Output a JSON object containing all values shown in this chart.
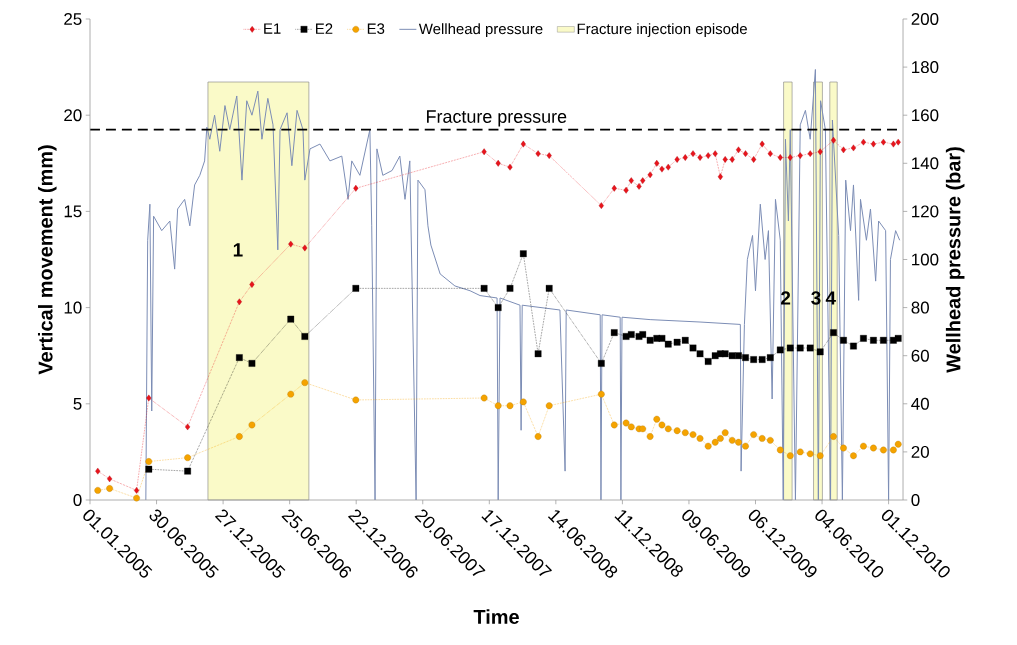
{
  "chart_data": {
    "type": "line",
    "xlabel": "Time",
    "ylabel": "Vertical movement (mm)",
    "y2label": "Wellhead pressure (bar)",
    "xlim": [
      "2005-01-01",
      "2011-01-09"
    ],
    "ylim": [
      0,
      25
    ],
    "yticks": [
      0,
      5,
      10,
      15,
      20,
      25
    ],
    "y2lim": [
      0,
      200
    ],
    "y2ticks": [
      0,
      20,
      40,
      60,
      80,
      100,
      120,
      140,
      160,
      180,
      200
    ],
    "xticks": [
      {
        "value": "2005-01-01",
        "label": "01.01.2005"
      },
      {
        "value": "2005-06-30",
        "label": "30.06.2005"
      },
      {
        "value": "2005-12-27",
        "label": "27.12.2005"
      },
      {
        "value": "2006-06-25",
        "label": "25.06.2006"
      },
      {
        "value": "2006-12-22",
        "label": "22.12.2006"
      },
      {
        "value": "2007-06-20",
        "label": "20.06.2007"
      },
      {
        "value": "2007-12-17",
        "label": "17.12.2007"
      },
      {
        "value": "2008-06-14",
        "label": "14.06.2008"
      },
      {
        "value": "2008-12-11",
        "label": "11.12.2008"
      },
      {
        "value": "2009-06-09",
        "label": "09.06.2009"
      },
      {
        "value": "2009-12-06",
        "label": "06.12.2009"
      },
      {
        "value": "2010-06-04",
        "label": "04.06.2010"
      },
      {
        "value": "2010-12-01",
        "label": "01.12.2010"
      }
    ],
    "legend": "top",
    "series": [
      {
        "name": "E1",
        "color": "#e8141c",
        "marker": "diamond",
        "line_style": "dotted",
        "x": [
          "2005-01-22",
          "2005-02-23",
          "2005-05-07",
          "2005-06-09",
          "2005-09-22",
          "2006-02-09",
          "2006-03-15",
          "2006-06-28",
          "2006-08-05",
          "2006-12-21",
          "2007-12-03",
          "2008-01-10",
          "2008-02-11",
          "2008-03-18",
          "2008-04-27",
          "2008-05-27",
          "2008-10-15",
          "2008-11-19",
          "2008-12-21",
          "2009-01-04",
          "2009-01-25",
          "2009-02-04",
          "2009-02-24",
          "2009-03-14",
          "2009-03-28",
          "2009-04-14",
          "2009-05-08",
          "2009-05-30",
          "2009-06-20",
          "2009-07-09",
          "2009-07-31",
          "2009-08-19",
          "2009-09-02",
          "2009-09-15",
          "2009-10-04",
          "2009-10-21",
          "2009-11-09",
          "2009-12-01",
          "2009-12-24",
          "2010-01-15",
          "2010-02-11",
          "2010-03-10",
          "2010-04-06",
          "2010-05-03",
          "2010-05-30",
          "2010-07-05",
          "2010-08-01",
          "2010-08-28",
          "2010-09-24",
          "2010-10-21",
          "2010-11-17",
          "2010-12-14",
          "2010-12-27"
        ],
        "values": [
          1.5,
          1.1,
          0.5,
          5.3,
          3.8,
          10.3,
          11.2,
          13.3,
          13.1,
          16.2,
          18.1,
          17.5,
          17.3,
          18.5,
          18.0,
          17.9,
          15.3,
          16.2,
          16.1,
          16.6,
          16.3,
          16.6,
          16.9,
          17.5,
          17.2,
          17.3,
          17.7,
          17.8,
          18.0,
          17.8,
          17.9,
          18.0,
          16.8,
          17.7,
          17.7,
          18.2,
          18.0,
          17.7,
          18.5,
          18.0,
          17.8,
          17.8,
          17.9,
          18.0,
          18.1,
          18.7,
          18.2,
          18.3,
          18.6,
          18.5,
          18.6,
          18.5,
          18.6
        ]
      },
      {
        "name": "E2",
        "color": "#000000",
        "marker": "square",
        "line_style": "dotted",
        "x": [
          "2005-06-09",
          "2005-09-22",
          "2006-02-09",
          "2006-03-15",
          "2006-06-28",
          "2006-08-05",
          "2006-12-21",
          "2007-12-03",
          "2008-01-10",
          "2008-02-11",
          "2008-03-18",
          "2008-04-27",
          "2008-05-27",
          "2008-10-15",
          "2008-11-19",
          "2008-12-21",
          "2009-01-04",
          "2009-01-25",
          "2009-02-04",
          "2009-02-24",
          "2009-03-14",
          "2009-03-28",
          "2009-04-14",
          "2009-05-08",
          "2009-05-30",
          "2009-06-20",
          "2009-07-09",
          "2009-07-31",
          "2009-08-19",
          "2009-09-02",
          "2009-09-15",
          "2009-10-04",
          "2009-10-21",
          "2009-11-09",
          "2009-12-01",
          "2009-12-24",
          "2010-01-15",
          "2010-02-11",
          "2010-03-10",
          "2010-04-06",
          "2010-05-03",
          "2010-05-30",
          "2010-07-05",
          "2010-08-01",
          "2010-08-28",
          "2010-09-24",
          "2010-10-21",
          "2010-11-17",
          "2010-12-14",
          "2010-12-27"
        ],
        "values": [
          1.6,
          1.5,
          7.4,
          7.1,
          9.4,
          8.5,
          11.0,
          11.0,
          10.0,
          11.0,
          12.8,
          7.6,
          11.0,
          7.1,
          8.7,
          8.5,
          8.6,
          8.5,
          8.6,
          8.3,
          8.4,
          8.4,
          8.1,
          8.2,
          8.3,
          7.9,
          7.6,
          7.2,
          7.5,
          7.6,
          7.6,
          7.5,
          7.5,
          7.4,
          7.3,
          7.3,
          7.4,
          7.8,
          7.9,
          7.9,
          7.9,
          7.7,
          8.7,
          8.3,
          8.0,
          8.4,
          8.3,
          8.3,
          8.3,
          8.4
        ]
      },
      {
        "name": "E3",
        "color": "#f5a300",
        "marker": "circle",
        "line_style": "dotted",
        "x": [
          "2005-01-22",
          "2005-02-23",
          "2005-05-07",
          "2005-06-09",
          "2005-09-22",
          "2006-02-09",
          "2006-03-15",
          "2006-06-28",
          "2006-08-05",
          "2006-12-21",
          "2007-12-03",
          "2008-01-10",
          "2008-02-11",
          "2008-03-18",
          "2008-04-27",
          "2008-05-27",
          "2008-10-15",
          "2008-11-19",
          "2008-12-21",
          "2009-01-04",
          "2009-01-25",
          "2009-02-04",
          "2009-02-24",
          "2009-03-14",
          "2009-03-28",
          "2009-04-14",
          "2009-05-08",
          "2009-05-30",
          "2009-06-20",
          "2009-07-09",
          "2009-07-31",
          "2009-08-19",
          "2009-09-02",
          "2009-09-15",
          "2009-10-04",
          "2009-10-21",
          "2009-11-09",
          "2009-12-01",
          "2009-12-24",
          "2010-01-15",
          "2010-02-11",
          "2010-03-10",
          "2010-04-06",
          "2010-05-03",
          "2010-05-30",
          "2010-07-05",
          "2010-08-01",
          "2010-08-28",
          "2010-09-24",
          "2010-10-21",
          "2010-11-17",
          "2010-12-14",
          "2010-12-27"
        ],
        "values": [
          0.5,
          0.6,
          0.1,
          2.0,
          2.2,
          3.3,
          3.9,
          5.5,
          6.1,
          5.2,
          5.3,
          4.9,
          4.9,
          5.1,
          3.3,
          4.9,
          5.5,
          3.9,
          4.0,
          3.8,
          3.7,
          3.7,
          3.3,
          4.2,
          3.9,
          3.7,
          3.6,
          3.5,
          3.4,
          3.2,
          2.8,
          3.0,
          3.2,
          3.5,
          3.1,
          3.0,
          2.8,
          3.4,
          3.2,
          3.1,
          2.6,
          2.3,
          2.5,
          2.4,
          2.3,
          3.3,
          2.7,
          2.3,
          2.8,
          2.7,
          2.6,
          2.6,
          2.9
        ]
      },
      {
        "name": "Wellhead pressure",
        "color": "#7b8db5",
        "marker": "none",
        "line_style": "solid",
        "axis": "y2",
        "x": [
          "2005-06-01",
          "2005-06-06",
          "2005-06-12",
          "2005-06-17",
          "2005-06-22",
          "2005-07-14",
          "2005-08-05",
          "2005-08-18",
          "2005-08-26",
          "2005-09-14",
          "2005-09-28",
          "2005-10-11",
          "2005-10-25",
          "2005-11-07",
          "2005-11-13",
          "2005-11-21",
          "2005-12-04",
          "2005-12-18",
          "2006-01-01",
          "2006-01-14",
          "2006-02-02",
          "2006-02-16",
          "2006-03-01",
          "2006-03-15",
          "2006-03-31",
          "2006-04-11",
          "2006-04-27",
          "2006-05-11",
          "2006-05-24",
          "2006-05-30",
          "2006-06-18",
          "2006-07-01",
          "2006-07-15",
          "2006-07-31",
          "2006-08-05",
          "2006-08-19",
          "2006-09-15",
          "2006-10-12",
          "2006-11-13",
          "2006-11-30",
          "2006-12-10",
          "2007-01-01",
          "2007-01-28",
          "2007-02-02",
          "2007-02-11",
          "2007-02-16",
          "2007-03-04",
          "2007-03-29",
          "2007-04-19",
          "2007-05-03",
          "2007-05-16",
          "2007-06-02",
          "2007-06-07",
          "2007-06-26",
          "2007-07-04",
          "2007-07-12",
          "2007-08-06",
          "2007-09-15",
          "2007-10-26",
          "2007-11-22",
          "2008-01-07",
          "2008-01-10",
          "2008-01-15",
          "2008-03-09",
          "2008-03-12",
          "2008-03-15",
          "2008-06-25",
          "2008-07-09",
          "2008-07-12",
          "2008-10-12",
          "2008-10-14",
          "2008-10-17",
          "2008-12-05",
          "2008-12-07",
          "2008-12-10",
          "2009-02-24",
          "2009-07-09",
          "2009-10-26",
          "2009-10-28",
          "2009-11-06",
          "2009-11-14",
          "2009-11-28",
          "2009-12-06",
          "2009-12-19",
          "2010-01-01",
          "2010-01-10",
          "2010-01-20",
          "2010-01-29",
          "2010-02-11",
          "2010-02-19",
          "2010-02-25",
          "2010-03-05",
          "2010-03-10",
          "2010-03-24",
          "2010-04-06",
          "2010-04-20",
          "2010-05-03",
          "2010-05-17",
          "2010-05-25",
          "2010-05-31",
          "2010-06-13",
          "2010-06-27",
          "2010-07-02",
          "2010-07-19",
          "2010-07-29",
          "2010-08-07",
          "2010-08-20",
          "2010-08-28",
          "2010-09-11",
          "2010-09-16",
          "2010-10-02",
          "2010-10-13",
          "2010-10-27",
          "2010-11-04",
          "2010-11-23",
          "2010-12-01",
          "2010-12-06",
          "2010-12-20",
          "2010-12-31"
        ],
        "values": [
          0,
          108,
          123,
          37,
          118,
          112,
          116,
          96,
          121,
          125,
          114,
          131,
          135,
          141,
          155,
          150,
          160,
          145,
          164,
          154,
          168,
          133,
          166,
          160,
          170,
          150,
          167,
          156,
          104,
          154,
          161,
          139,
          162,
          154,
          133,
          146,
          148,
          141,
          143,
          125,
          141,
          135,
          154,
          114,
          0,
          146,
          135,
          137,
          143,
          125,
          141,
          0,
          133,
          129,
          114,
          106,
          94,
          89,
          87,
          85,
          84,
          0,
          84,
          81,
          29,
          81,
          79,
          12,
          79,
          77,
          0,
          77,
          76,
          0,
          76,
          75,
          74,
          73,
          12,
          73,
          100,
          110,
          87,
          123,
          100,
          112,
          42,
          125,
          108,
          0,
          150,
          116,
          154,
          0,
          156,
          162,
          150,
          179,
          0,
          166,
          154,
          0,
          158,
          110,
          0,
          133,
          112,
          131,
          83,
          125,
          108,
          121,
          91,
          116,
          112,
          0,
          100,
          112,
          108
        ]
      }
    ],
    "ref_lines": [
      {
        "axis": "y2",
        "value": 154,
        "label": "Fracture pressure",
        "color": "#000000",
        "line_style": "dashed"
      }
    ],
    "bands": [
      {
        "axis": "x",
        "from": "2005-11-16",
        "to": "2006-08-16",
        "label": "Fracture injection episode",
        "color": "#fafac8"
      },
      {
        "axis": "x",
        "from": "2010-02-20",
        "to": "2010-03-15",
        "color": "#fafac8"
      },
      {
        "axis": "x",
        "from": "2010-05-12",
        "to": "2010-06-05",
        "color": "#fafac8"
      },
      {
        "axis": "x",
        "from": "2010-06-25",
        "to": "2010-07-15",
        "color": "#fafac8"
      }
    ],
    "annotations": [
      "1",
      "2",
      "3",
      "4"
    ]
  }
}
